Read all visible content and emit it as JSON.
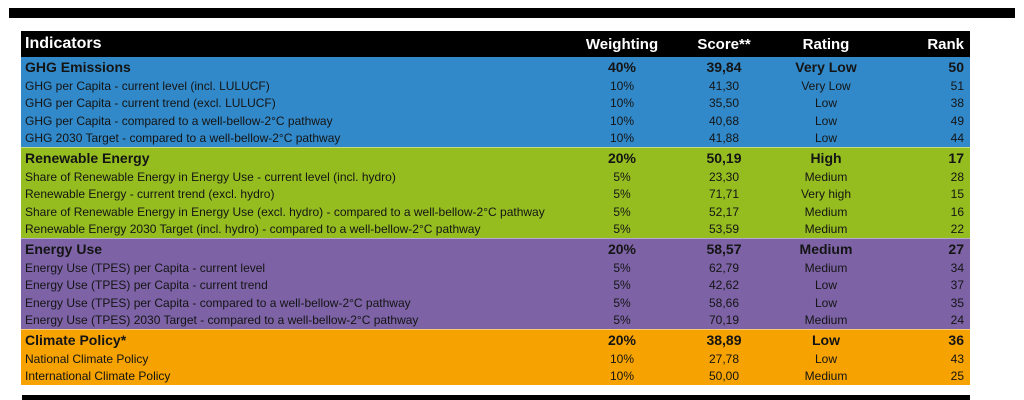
{
  "rules": {
    "top_rule": "black-divider",
    "bottom_rule": "black-divider"
  },
  "table": {
    "columns": {
      "indicators": "Indicators",
      "weighting": "Weighting",
      "score": "Score**",
      "rating": "Rating",
      "rank": "Rank"
    },
    "sections": [
      {
        "name": "GHG Emissions",
        "color": "#3289c9",
        "summary": {
          "weighting": "40%",
          "score": "39,84",
          "rating": "Very Low",
          "rank": "50"
        },
        "rows": [
          {
            "indicator": "GHG per Capita - current level (incl. LULUCF)",
            "weighting": "10%",
            "score": "41,30",
            "rating": "Very Low",
            "rank": "51"
          },
          {
            "indicator": "GHG per Capita - current trend (excl. LULUCF)",
            "weighting": "10%",
            "score": "35,50",
            "rating": "Low",
            "rank": "38"
          },
          {
            "indicator": "GHG per Capita - compared to a well-bellow-2°C pathway",
            "weighting": "10%",
            "score": "40,68",
            "rating": "Low",
            "rank": "49"
          },
          {
            "indicator": "GHG 2030 Target - compared to a well-bellow-2°C pathway",
            "weighting": "10%",
            "score": "41,88",
            "rating": "Low",
            "rank": "44"
          }
        ]
      },
      {
        "name": "Renewable Energy",
        "color": "#95bd20",
        "summary": {
          "weighting": "20%",
          "score": "50,19",
          "rating": "High",
          "rank": "17"
        },
        "rows": [
          {
            "indicator": "Share of Renewable Energy in Energy Use - current level (incl. hydro)",
            "weighting": "5%",
            "score": "23,30",
            "rating": "Medium",
            "rank": "28"
          },
          {
            "indicator": "Renewable Energy - current trend (excl. hydro)",
            "weighting": "5%",
            "score": "71,71",
            "rating": "Very high",
            "rank": "15"
          },
          {
            "indicator": "Share of Renewable Energy in Energy Use (excl. hydro) - compared to a well-bellow-2°C pathway",
            "weighting": "5%",
            "score": "52,17",
            "rating": "Medium",
            "rank": "16"
          },
          {
            "indicator": "Renewable Energy 2030 Target (incl. hydro) - compared to a well-bellow-2°C pathway",
            "weighting": "5%",
            "score": "53,59",
            "rating": "Medium",
            "rank": "22"
          }
        ]
      },
      {
        "name": "Energy Use",
        "color": "#7d63a6",
        "summary": {
          "weighting": "20%",
          "score": "58,57",
          "rating": "Medium",
          "rank": "27"
        },
        "rows": [
          {
            "indicator": "Energy Use (TPES) per Capita - current level",
            "weighting": "5%",
            "score": "62,79",
            "rating": "Medium",
            "rank": "34"
          },
          {
            "indicator": "Energy Use (TPES) per Capita - current trend",
            "weighting": "5%",
            "score": "42,62",
            "rating": "Low",
            "rank": "37"
          },
          {
            "indicator": "Energy Use (TPES) per Capita - compared to a well-bellow-2°C pathway",
            "weighting": "5%",
            "score": "58,66",
            "rating": "Low",
            "rank": "35"
          },
          {
            "indicator": "Energy Use (TPES) 2030 Target - compared to a well-bellow-2°C pathway",
            "weighting": "5%",
            "score": "70,19",
            "rating": "Medium",
            "rank": "24"
          }
        ]
      },
      {
        "name": "Climate Policy*",
        "color": "#f6a201",
        "summary": {
          "weighting": "20%",
          "score": "38,89",
          "rating": "Low",
          "rank": "36"
        },
        "rows": [
          {
            "indicator": "National Climate Policy",
            "weighting": "10%",
            "score": "27,78",
            "rating": "Low",
            "rank": "43"
          },
          {
            "indicator": "International Climate Policy",
            "weighting": "10%",
            "score": "50,00",
            "rating": "Medium",
            "rank": "25"
          }
        ]
      }
    ]
  }
}
